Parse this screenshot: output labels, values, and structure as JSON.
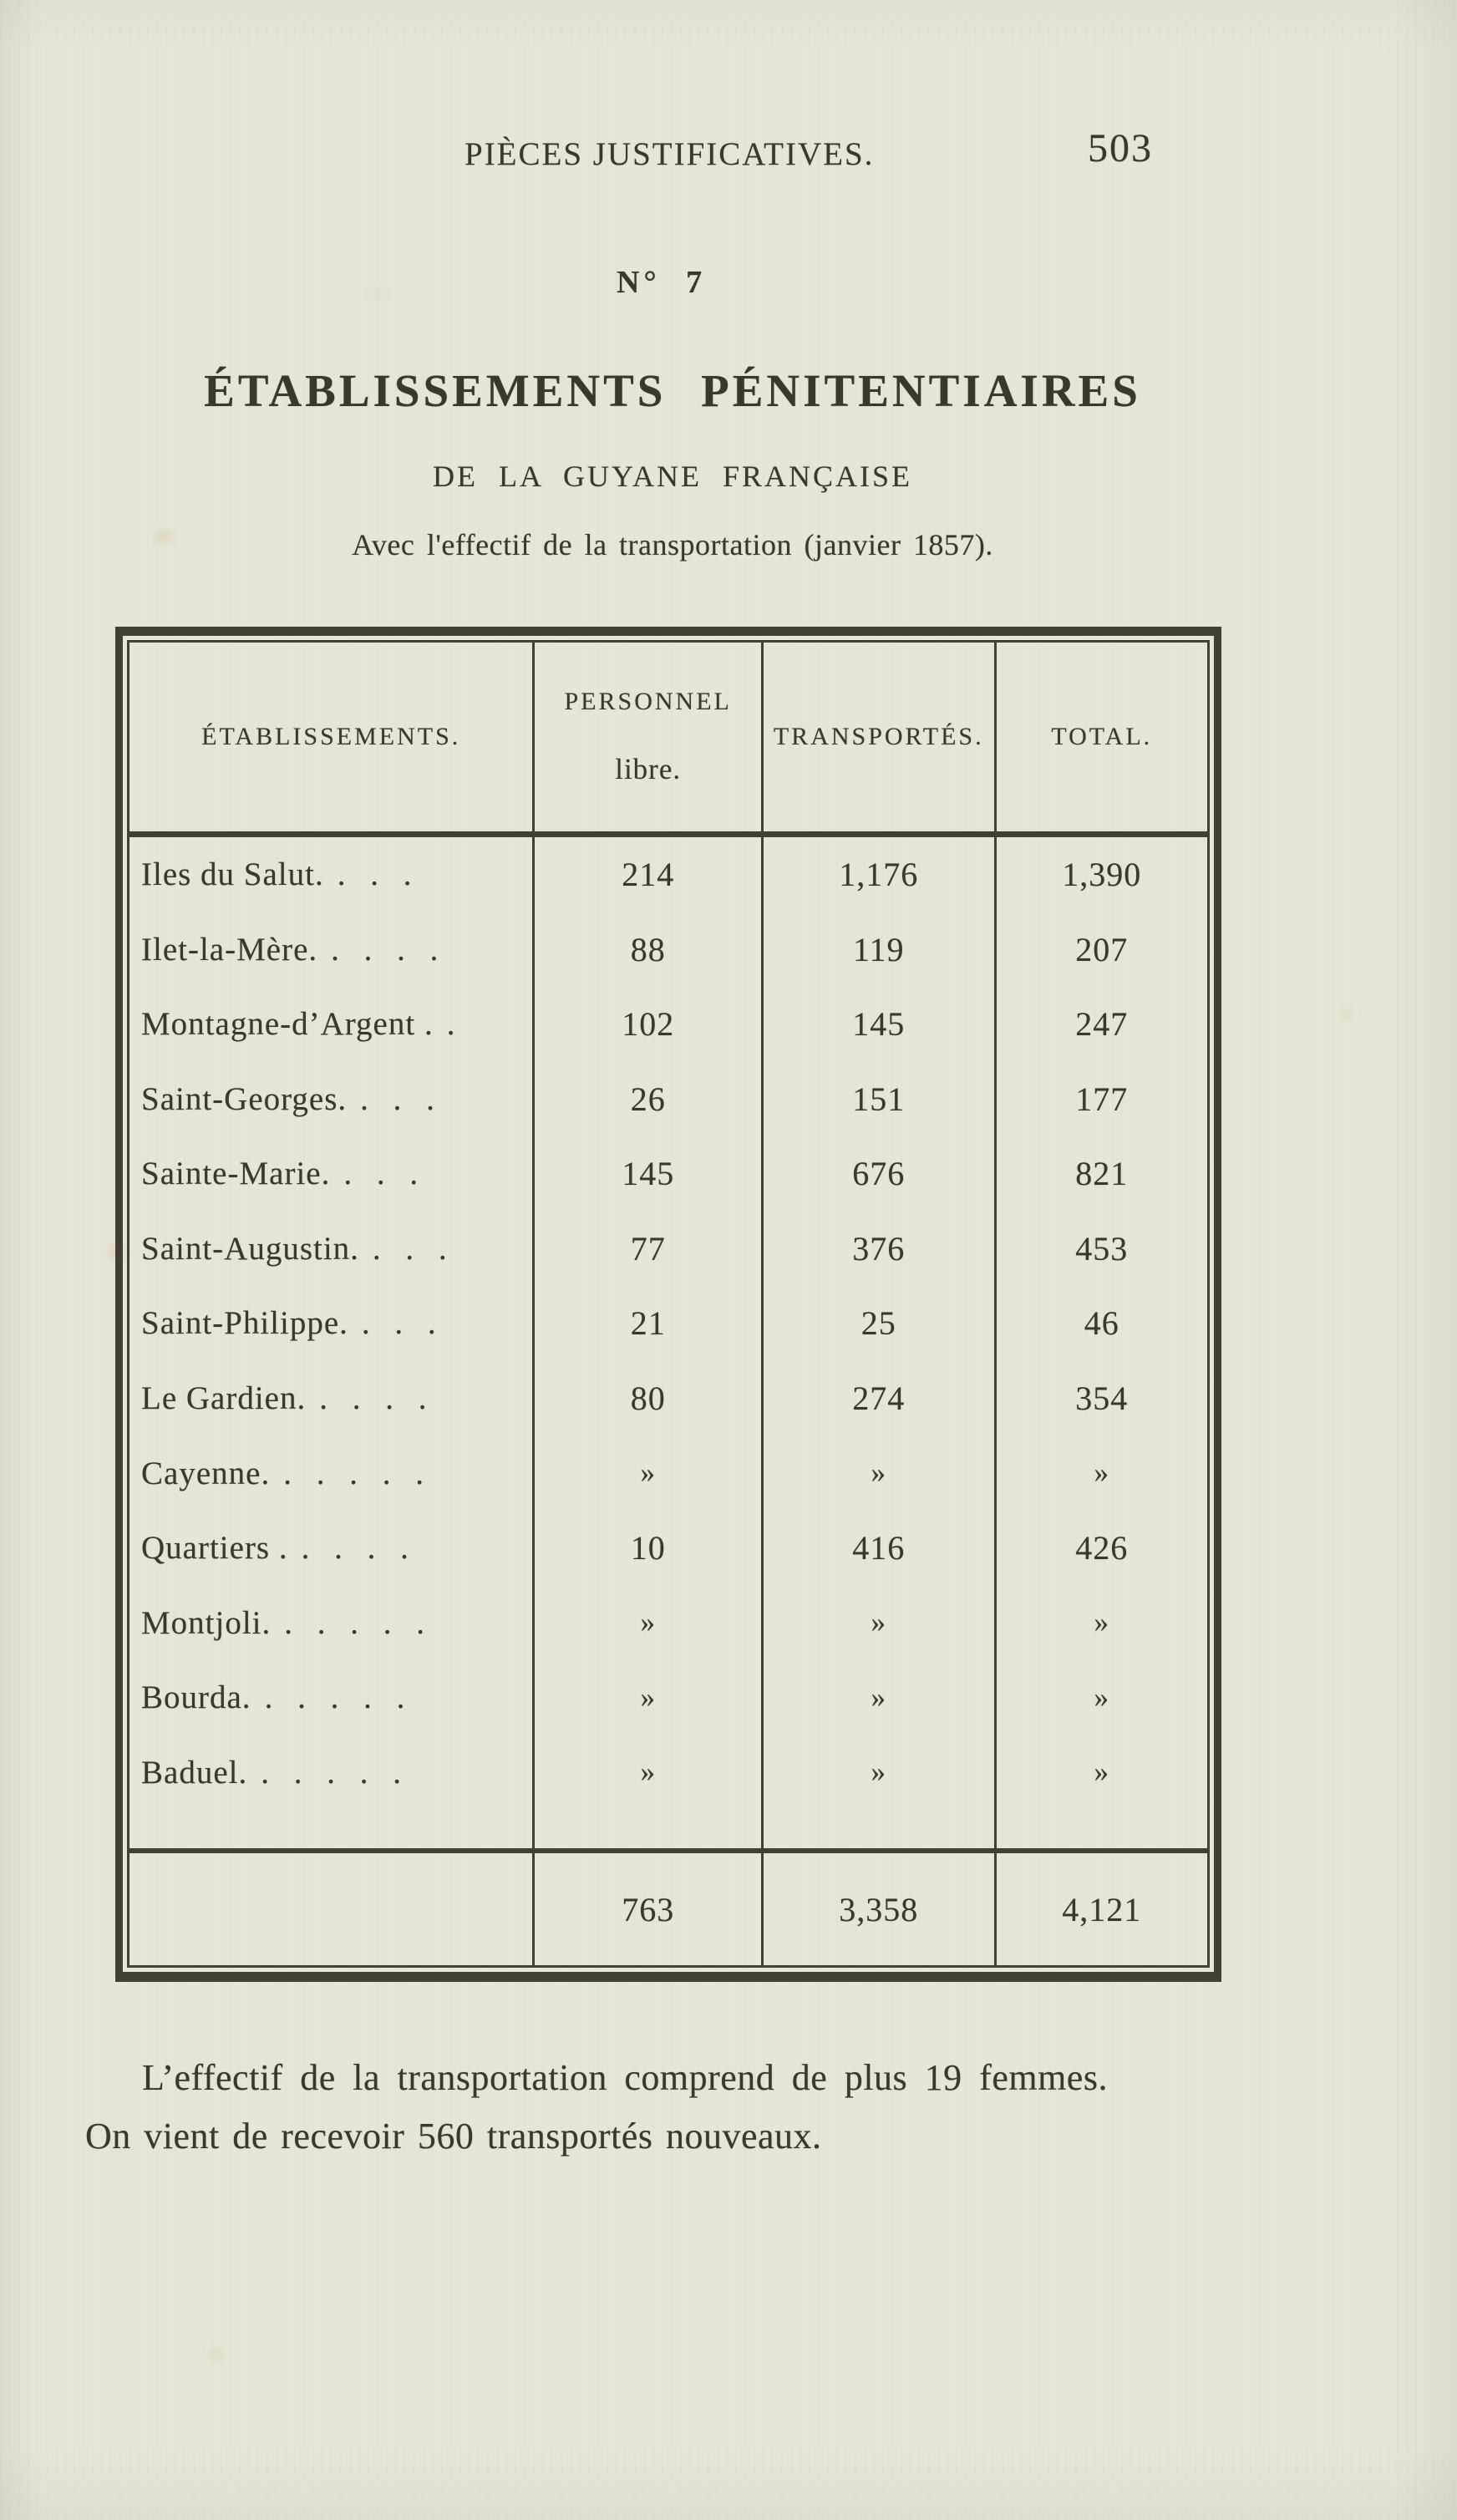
{
  "page": {
    "running_head": "PIÈCES JUSTIFICATIVES.",
    "page_number": "503",
    "piece_number": "N° 7",
    "title": "ÉTABLISSEMENTS PÉNITENTIAIRES",
    "subtitle": "DE LA GUYANE FRANÇAISE",
    "caption": "Avec l'effectif de la transportation (janvier 1857)."
  },
  "table": {
    "col_headers": {
      "etablissements": "ÉTABLISSEMENTS.",
      "personnel_line1": "PERSONNEL",
      "personnel_line2": "libre.",
      "transportes": "TRANSPORTÉS.",
      "total": "TOTAL."
    },
    "empty_marker": "»",
    "rows": [
      {
        "name": "Iles du Salut.",
        "dots": ". . .",
        "libre": "214",
        "transportes": "1,176",
        "total": "1,390"
      },
      {
        "name": "Ilet-la-Mère.",
        "dots": ". . . .",
        "libre": "88",
        "transportes": "119",
        "total": "207"
      },
      {
        "name": "Montagne-d’Argent .",
        "dots": ".",
        "libre": "102",
        "transportes": "145",
        "total": "247"
      },
      {
        "name": "Saint-Georges.",
        "dots": ". . .",
        "libre": "26",
        "transportes": "151",
        "total": "177"
      },
      {
        "name": "Sainte-Marie.",
        "dots": ". . .",
        "libre": "145",
        "transportes": "676",
        "total": "821"
      },
      {
        "name": "Saint-Augustin.",
        "dots": ". . .",
        "libre": "77",
        "transportes": "376",
        "total": "453"
      },
      {
        "name": "Saint-Philippe.",
        "dots": ". . .",
        "libre": "21",
        "transportes": "25",
        "total": "46"
      },
      {
        "name": "Le Gardien.",
        "dots": ". . . .",
        "libre": "80",
        "transportes": "274",
        "total": "354"
      },
      {
        "name": "Cayenne.",
        "dots": ". . . . .",
        "libre": "»",
        "transportes": "»",
        "total": "»"
      },
      {
        "name": "Quartiers .",
        "dots": ". . . .",
        "libre": "10",
        "transportes": "416",
        "total": "426"
      },
      {
        "name": "Montjoli.",
        "dots": ". . . . .",
        "libre": "»",
        "transportes": "»",
        "total": "»"
      },
      {
        "name": "Bourda.",
        "dots": ". . . . .",
        "libre": "»",
        "transportes": "»",
        "total": "»"
      },
      {
        "name": "Baduel.",
        "dots": ". . . . .",
        "libre": "»",
        "transportes": "»",
        "total": "»"
      }
    ],
    "totals": {
      "libre": "763",
      "transportes": "3,358",
      "total": "4,121"
    }
  },
  "notes": {
    "line1": "L’effectif de la transportation comprend de plus 19 femmes.",
    "line2": "On vient de recevoir 560 transportés nouveaux."
  },
  "colors": {
    "paper": "#e8e5d8",
    "ink": "#3b372d",
    "table_border": "#433f34"
  }
}
